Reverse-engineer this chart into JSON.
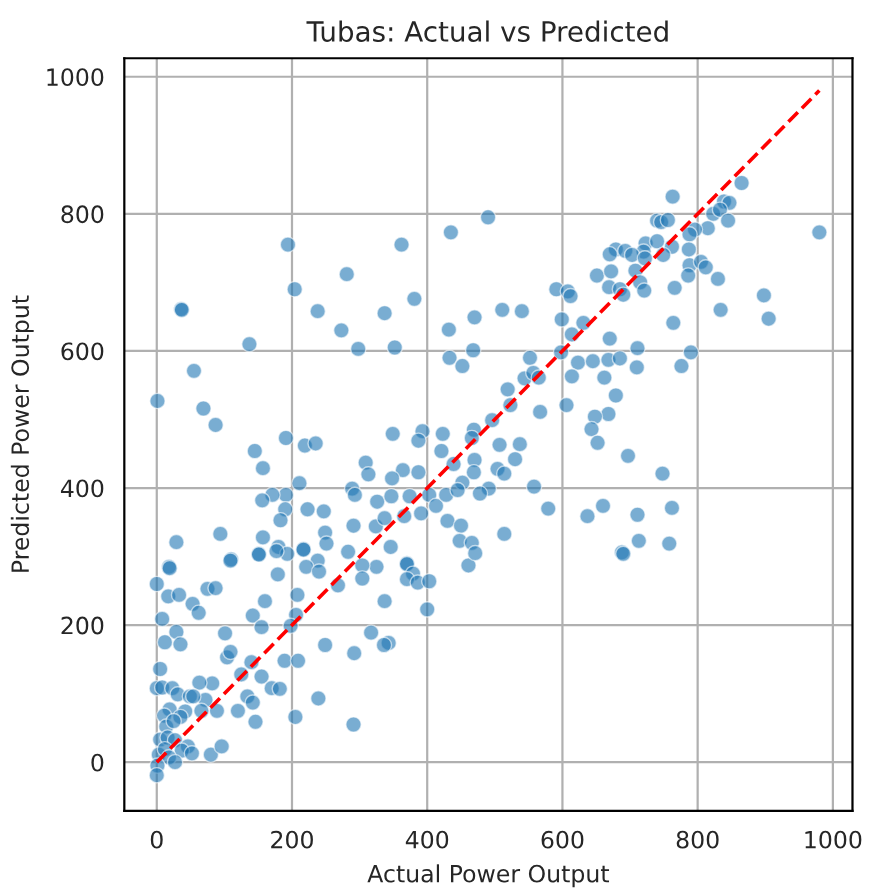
{
  "chart_data": {
    "type": "scatter",
    "title": "Tubas: Actual vs Predicted",
    "xlabel": "Actual Power Output",
    "ylabel": "Predicted Power Output",
    "xlim": [
      -48,
      1029
    ],
    "ylim": [
      -71,
      1027
    ],
    "xticks": [
      0,
      200,
      400,
      600,
      800,
      1000
    ],
    "yticks": [
      0,
      200,
      400,
      600,
      800,
      1000
    ],
    "grid": true,
    "marker": "circle",
    "series": [
      {
        "color": "#1f77b4",
        "x": [
          980,
          865,
          763,
          839,
          847,
          823,
          833,
          740,
          746,
          756,
          815,
          845,
          796,
          788,
          723,
          740,
          762,
          787,
          679,
          693,
          720,
          749,
          670,
          703,
          651,
          672,
          708,
          722,
          788,
          805,
          812,
          786,
          669,
          685,
          715,
          721,
          690,
          766,
          830,
          898,
          591,
          608,
          612,
          194,
          204,
          362,
          281,
          435,
          490,
          381,
          36,
          37,
          238,
          337,
          273,
          137,
          55,
          1,
          69,
          87,
          298,
          352,
          432,
          470,
          511,
          540,
          468,
          433,
          452,
          599,
          631,
          614,
          598,
          623,
          614,
          645,
          670,
          668,
          685,
          662,
          711,
          710,
          776,
          790,
          834,
          905,
          764,
          552,
          544,
          557,
          519,
          565,
          523,
          567,
          606,
          679,
          668,
          648,
          643,
          652,
          697,
          748,
          762,
          711,
          713,
          758,
          688,
          660,
          637,
          579,
          558,
          496,
          469,
          393,
          423,
          349,
          387,
          421,
          466,
          507,
          537,
          470,
          469,
          439,
          504,
          530,
          514,
          491,
          452,
          309,
          313,
          364,
          387,
          348,
          289,
          293,
          326,
          347,
          374,
          403,
          413,
          428,
          445,
          391,
          430,
          450,
          478,
          514,
          448,
          466,
          366,
          324,
          291,
          247,
          223,
          191,
          190,
          211,
          171,
          156,
          183,
          157,
          145,
          157,
          191,
          219,
          235,
          249,
          251,
          217,
          151,
          94,
          29,
          18,
          110,
          180,
          193,
          337,
          346,
          370,
          0,
          19,
          17,
          33,
          75,
          87,
          53,
          62,
          109,
          151,
          179,
          160,
          142,
          155,
          208,
          206,
          198,
          177,
          217,
          238,
          221,
          240,
          268,
          283,
          325,
          304,
          304,
          337,
          370,
          379,
          370,
          386,
          403,
          400,
          461,
          471,
          690,
          8,
          12,
          29,
          35,
          5,
          0,
          8,
          23,
          31,
          49,
          72,
          82,
          104,
          109,
          101,
          140,
          155,
          170,
          125,
          134,
          142,
          120,
          146,
          182,
          189,
          209,
          205,
          239,
          249,
          292,
          317,
          343,
          336,
          291,
          63,
          54,
          42,
          19,
          11,
          14,
          5,
          16,
          27,
          46,
          37,
          52,
          3,
          12,
          18,
          27,
          1,
          0,
          80,
          96,
          89,
          66,
          35,
          25
        ],
        "values": [
          773,
          845,
          825,
          818,
          816,
          800,
          806,
          790,
          788,
          791,
          779,
          790,
          777,
          770,
          757,
          760,
          752,
          748,
          748,
          746,
          745,
          740,
          741,
          740,
          710,
          716,
          717,
          735,
          725,
          730,
          722,
          710,
          693,
          690,
          700,
          688,
          682,
          692,
          705,
          681,
          690,
          687,
          680,
          755,
          690,
          755,
          712,
          773,
          795,
          676,
          661,
          660,
          658,
          655,
          630,
          610,
          571,
          527,
          516,
          492,
          603,
          605,
          631,
          649,
          660,
          658,
          601,
          590,
          578,
          646,
          641,
          624,
          598,
          583,
          563,
          585,
          618,
          587,
          589,
          561,
          604,
          576,
          578,
          598,
          660,
          647,
          641,
          590,
          560,
          568,
          544,
          561,
          521,
          511,
          521,
          535,
          508,
          504,
          486,
          466,
          447,
          421,
          371,
          361,
          323,
          319,
          306,
          374,
          359,
          370,
          402,
          499,
          485,
          483,
          479,
          479,
          469,
          454,
          473,
          463,
          464,
          441,
          423,
          435,
          428,
          442,
          421,
          399,
          408,
          437,
          420,
          426,
          423,
          414,
          399,
          390,
          380,
          388,
          388,
          390,
          374,
          390,
          397,
          363,
          352,
          345,
          392,
          333,
          323,
          320,
          359,
          344,
          345,
          366,
          369,
          390,
          369,
          407,
          390,
          382,
          353,
          328,
          454,
          429,
          473,
          462,
          465,
          335,
          319,
          311,
          304,
          333,
          321,
          285,
          296,
          314,
          304,
          356,
          314,
          290,
          260,
          283,
          242,
          244,
          253,
          254,
          231,
          218,
          294,
          303,
          274,
          235,
          214,
          197,
          244,
          215,
          199,
          308,
          310,
          294,
          285,
          278,
          258,
          307,
          285,
          287,
          268,
          235,
          289,
          275,
          267,
          262,
          264,
          223,
          287,
          305,
          304,
          209,
          175,
          190,
          172,
          136,
          108,
          109,
          108,
          99,
          96,
          91,
          115,
          153,
          161,
          188,
          146,
          125,
          108,
          128,
          96,
          87,
          75,
          59,
          107,
          148,
          148,
          66,
          93,
          171,
          159,
          189,
          174,
          171,
          55,
          116,
          96,
          74,
          77,
          68,
          52,
          33,
          36,
          32,
          23,
          17,
          13,
          11,
          19,
          7,
          0,
          -5,
          -19,
          11,
          23,
          75,
          75,
          66,
          60
        ]
      },
      {
        "type": "line",
        "color": "#ff0000",
        "line_style": "dashed",
        "marker": "none",
        "x": [
          0,
          980
        ],
        "values": [
          0,
          980
        ]
      }
    ]
  }
}
